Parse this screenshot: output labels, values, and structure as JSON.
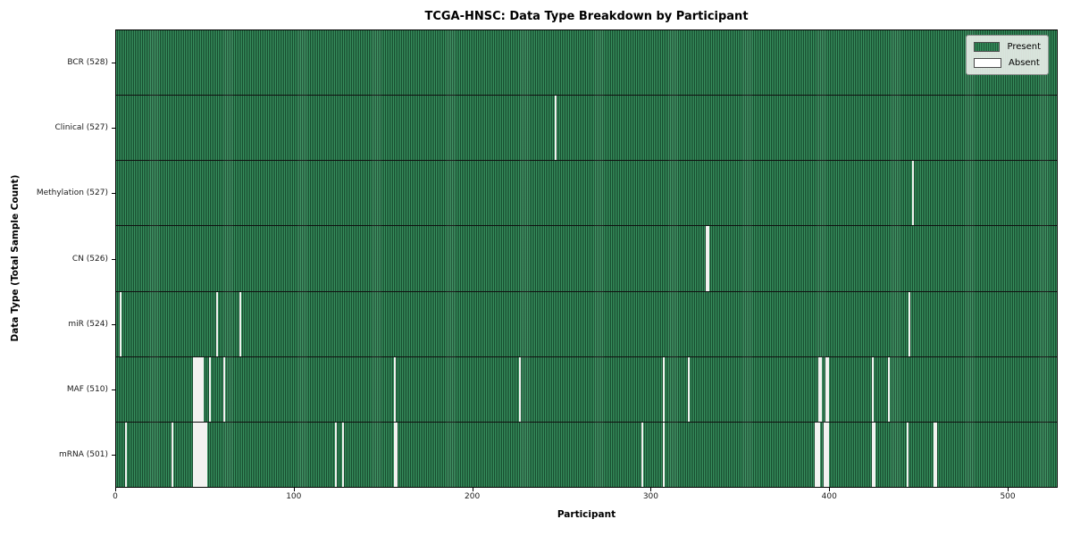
{
  "colors": {
    "present_green": "#2e8b57",
    "present_dark_edge": "#174b2e",
    "absent_white": "#f2f2f0",
    "row_divider": "#101010",
    "legend_bg": "#ebf0eb",
    "legend_border": "#8f8f8f"
  },
  "chart_data": {
    "type": "heatmap",
    "title": "TCGA-HNSC: Data Type Breakdown by Participant",
    "xlabel": "Participant",
    "ylabel": "Data Type (Total Sample Count)",
    "x_range": [
      0,
      528
    ],
    "x_ticks": [
      0,
      100,
      200,
      300,
      400,
      500
    ],
    "grid": false,
    "legend_position": "upper right",
    "legend": [
      {
        "label": "Present",
        "color": "#2e8b57"
      },
      {
        "label": "Absent",
        "color": "#ffffff"
      }
    ],
    "rows": [
      {
        "label": "BCR (528)",
        "data_type": "BCR",
        "total": 528,
        "absent_participants": []
      },
      {
        "label": "Clinical (527)",
        "data_type": "Clinical",
        "total": 527,
        "absent_participants": [
          246
        ]
      },
      {
        "label": "Methylation (527)",
        "data_type": "Methylation",
        "total": 527,
        "absent_participants": [
          447
        ]
      },
      {
        "label": "CN (526)",
        "data_type": "CN",
        "total": 526,
        "absent_participants": [
          331,
          332
        ]
      },
      {
        "label": "miR (524)",
        "data_type": "miR",
        "total": 524,
        "absent_participants": [
          2,
          56,
          69,
          445
        ]
      },
      {
        "label": "MAF (510)",
        "data_type": "MAF",
        "total": 510,
        "absent_participants": [
          43,
          44,
          45,
          46,
          47,
          48,
          52,
          60,
          156,
          226,
          307,
          321,
          394,
          395,
          398,
          399,
          424,
          433
        ]
      },
      {
        "label": "mRNA (501)",
        "data_type": "mRNA",
        "total": 501,
        "absent_participants": [
          5,
          31,
          43,
          44,
          45,
          46,
          47,
          48,
          49,
          50,
          123,
          127,
          156,
          157,
          295,
          307,
          392,
          393,
          394,
          397,
          398,
          399,
          424,
          425,
          444,
          459,
          460
        ]
      }
    ]
  }
}
